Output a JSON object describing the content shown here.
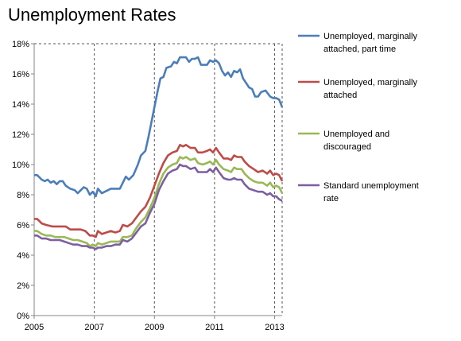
{
  "chart_data": {
    "type": "line",
    "title": "Unemployment Rates",
    "xlabel": "",
    "ylabel": "",
    "xlim": [
      2005,
      2013.25
    ],
    "ylim": [
      0,
      18
    ],
    "x_ticks": [
      2005,
      2007,
      2009,
      2011,
      2013
    ],
    "y_ticks": [
      0,
      2,
      4,
      6,
      8,
      10,
      12,
      14,
      16,
      18
    ],
    "y_tick_labels": [
      "0%",
      "2%",
      "4%",
      "6%",
      "8%",
      "10%",
      "12%",
      "14%",
      "16%",
      "18%"
    ],
    "grid": {
      "vertical": true,
      "horizontal": false,
      "style": "dashed"
    },
    "legend_position": "right",
    "series": [
      {
        "name": "Unemployed, marginally attached, part time",
        "color": "#4a7ebb",
        "legend_lines": [
          "Unemployed, marginally",
          "attached, part time"
        ],
        "points": [
          [
            2005.0,
            9.3
          ],
          [
            2005.1,
            9.3
          ],
          [
            2005.25,
            9.0
          ],
          [
            2005.35,
            8.9
          ],
          [
            2005.45,
            9.0
          ],
          [
            2005.55,
            8.8
          ],
          [
            2005.65,
            8.9
          ],
          [
            2005.75,
            8.7
          ],
          [
            2005.85,
            8.9
          ],
          [
            2005.95,
            8.9
          ],
          [
            2006.05,
            8.6
          ],
          [
            2006.2,
            8.4
          ],
          [
            2006.35,
            8.3
          ],
          [
            2006.45,
            8.1
          ],
          [
            2006.55,
            8.3
          ],
          [
            2006.65,
            8.5
          ],
          [
            2006.75,
            8.4
          ],
          [
            2006.85,
            8.0
          ],
          [
            2006.95,
            8.2
          ],
          [
            2007.05,
            7.9
          ],
          [
            2007.12,
            8.4
          ],
          [
            2007.25,
            8.1
          ],
          [
            2007.35,
            8.2
          ],
          [
            2007.45,
            8.3
          ],
          [
            2007.55,
            8.4
          ],
          [
            2007.7,
            8.4
          ],
          [
            2007.85,
            8.4
          ],
          [
            2007.95,
            8.8
          ],
          [
            2008.05,
            9.2
          ],
          [
            2008.15,
            9.0
          ],
          [
            2008.3,
            9.3
          ],
          [
            2008.45,
            10.0
          ],
          [
            2008.55,
            10.6
          ],
          [
            2008.7,
            10.9
          ],
          [
            2008.8,
            11.8
          ],
          [
            2008.9,
            12.8
          ],
          [
            2009.0,
            13.8
          ],
          [
            2009.1,
            14.8
          ],
          [
            2009.2,
            15.7
          ],
          [
            2009.3,
            15.8
          ],
          [
            2009.4,
            16.4
          ],
          [
            2009.55,
            16.5
          ],
          [
            2009.65,
            16.8
          ],
          [
            2009.75,
            16.7
          ],
          [
            2009.85,
            17.1
          ],
          [
            2009.95,
            17.1
          ],
          [
            2010.05,
            17.1
          ],
          [
            2010.15,
            16.8
          ],
          [
            2010.25,
            17.0
          ],
          [
            2010.35,
            17.0
          ],
          [
            2010.45,
            17.1
          ],
          [
            2010.55,
            16.6
          ],
          [
            2010.65,
            16.6
          ],
          [
            2010.75,
            16.6
          ],
          [
            2010.85,
            16.9
          ],
          [
            2010.95,
            16.8
          ],
          [
            2011.05,
            16.9
          ],
          [
            2011.15,
            16.7
          ],
          [
            2011.25,
            16.2
          ],
          [
            2011.35,
            15.9
          ],
          [
            2011.45,
            16.1
          ],
          [
            2011.55,
            15.8
          ],
          [
            2011.65,
            16.2
          ],
          [
            2011.75,
            16.1
          ],
          [
            2011.85,
            16.3
          ],
          [
            2011.95,
            15.7
          ],
          [
            2012.05,
            15.4
          ],
          [
            2012.15,
            15.1
          ],
          [
            2012.25,
            15.0
          ],
          [
            2012.35,
            14.5
          ],
          [
            2012.45,
            14.5
          ],
          [
            2012.55,
            14.8
          ],
          [
            2012.7,
            14.9
          ],
          [
            2012.85,
            14.5
          ],
          [
            2012.95,
            14.4
          ],
          [
            2013.05,
            14.4
          ],
          [
            2013.15,
            14.3
          ],
          [
            2013.25,
            13.8
          ]
        ]
      },
      {
        "name": "Unemployed, marginally attached",
        "color": "#be4b48",
        "legend_lines": [
          "Unemployed, marginally",
          "attached"
        ],
        "points": [
          [
            2005.0,
            6.4
          ],
          [
            2005.1,
            6.4
          ],
          [
            2005.25,
            6.1
          ],
          [
            2005.4,
            6.0
          ],
          [
            2005.6,
            5.9
          ],
          [
            2005.8,
            5.9
          ],
          [
            2005.95,
            5.9
          ],
          [
            2006.05,
            5.9
          ],
          [
            2006.2,
            5.7
          ],
          [
            2006.4,
            5.7
          ],
          [
            2006.55,
            5.7
          ],
          [
            2006.7,
            5.6
          ],
          [
            2006.85,
            5.3
          ],
          [
            2006.95,
            5.3
          ],
          [
            2007.05,
            5.2
          ],
          [
            2007.12,
            5.6
          ],
          [
            2007.25,
            5.4
          ],
          [
            2007.4,
            5.5
          ],
          [
            2007.55,
            5.6
          ],
          [
            2007.7,
            5.5
          ],
          [
            2007.85,
            5.6
          ],
          [
            2007.95,
            6.0
          ],
          [
            2008.1,
            5.9
          ],
          [
            2008.25,
            6.1
          ],
          [
            2008.4,
            6.5
          ],
          [
            2008.55,
            6.9
          ],
          [
            2008.7,
            7.2
          ],
          [
            2008.85,
            7.8
          ],
          [
            2009.0,
            8.6
          ],
          [
            2009.15,
            9.4
          ],
          [
            2009.3,
            10.1
          ],
          [
            2009.45,
            10.6
          ],
          [
            2009.6,
            10.8
          ],
          [
            2009.75,
            10.9
          ],
          [
            2009.85,
            11.3
          ],
          [
            2009.95,
            11.2
          ],
          [
            2010.05,
            11.3
          ],
          [
            2010.2,
            11.1
          ],
          [
            2010.35,
            11.1
          ],
          [
            2010.45,
            10.8
          ],
          [
            2010.6,
            10.8
          ],
          [
            2010.75,
            10.9
          ],
          [
            2010.85,
            11.0
          ],
          [
            2010.95,
            10.8
          ],
          [
            2011.05,
            11.1
          ],
          [
            2011.15,
            10.8
          ],
          [
            2011.3,
            10.4
          ],
          [
            2011.45,
            10.4
          ],
          [
            2011.55,
            10.3
          ],
          [
            2011.65,
            10.6
          ],
          [
            2011.75,
            10.5
          ],
          [
            2011.9,
            10.5
          ],
          [
            2012.0,
            10.2
          ],
          [
            2012.15,
            9.9
          ],
          [
            2012.3,
            9.7
          ],
          [
            2012.45,
            9.5
          ],
          [
            2012.6,
            9.6
          ],
          [
            2012.75,
            9.4
          ],
          [
            2012.85,
            9.6
          ],
          [
            2012.95,
            9.3
          ],
          [
            2013.05,
            9.4
          ],
          [
            2013.15,
            9.3
          ],
          [
            2013.25,
            8.9
          ]
        ]
      },
      {
        "name": "Unemployed and discouraged",
        "color": "#98b954",
        "legend_lines": [
          "Unemployed and",
          "discouraged"
        ],
        "points": [
          [
            2005.0,
            5.6
          ],
          [
            2005.1,
            5.6
          ],
          [
            2005.25,
            5.4
          ],
          [
            2005.4,
            5.3
          ],
          [
            2005.55,
            5.3
          ],
          [
            2005.7,
            5.2
          ],
          [
            2005.85,
            5.2
          ],
          [
            2006.0,
            5.2
          ],
          [
            2006.15,
            5.1
          ],
          [
            2006.3,
            5.0
          ],
          [
            2006.45,
            5.0
          ],
          [
            2006.6,
            4.9
          ],
          [
            2006.75,
            4.8
          ],
          [
            2006.85,
            4.6
          ],
          [
            2006.95,
            4.7
          ],
          [
            2007.05,
            4.6
          ],
          [
            2007.12,
            4.8
          ],
          [
            2007.25,
            4.7
          ],
          [
            2007.4,
            4.8
          ],
          [
            2007.55,
            4.9
          ],
          [
            2007.7,
            4.9
          ],
          [
            2007.85,
            4.9
          ],
          [
            2007.95,
            5.2
          ],
          [
            2008.1,
            5.2
          ],
          [
            2008.25,
            5.3
          ],
          [
            2008.4,
            5.8
          ],
          [
            2008.55,
            6.2
          ],
          [
            2008.7,
            6.5
          ],
          [
            2008.85,
            7.1
          ],
          [
            2009.0,
            7.8
          ],
          [
            2009.15,
            8.7
          ],
          [
            2009.3,
            9.4
          ],
          [
            2009.45,
            9.8
          ],
          [
            2009.6,
            10.0
          ],
          [
            2009.75,
            10.1
          ],
          [
            2009.85,
            10.5
          ],
          [
            2009.95,
            10.4
          ],
          [
            2010.05,
            10.5
          ],
          [
            2010.2,
            10.3
          ],
          [
            2010.35,
            10.4
          ],
          [
            2010.45,
            10.1
          ],
          [
            2010.6,
            10.0
          ],
          [
            2010.75,
            10.1
          ],
          [
            2010.85,
            10.2
          ],
          [
            2010.95,
            10.0
          ],
          [
            2011.05,
            10.3
          ],
          [
            2011.15,
            10.0
          ],
          [
            2011.3,
            9.7
          ],
          [
            2011.45,
            9.6
          ],
          [
            2011.55,
            9.5
          ],
          [
            2011.65,
            9.8
          ],
          [
            2011.75,
            9.7
          ],
          [
            2011.9,
            9.7
          ],
          [
            2012.0,
            9.4
          ],
          [
            2012.15,
            9.1
          ],
          [
            2012.3,
            8.9
          ],
          [
            2012.45,
            8.8
          ],
          [
            2012.6,
            8.8
          ],
          [
            2012.75,
            8.6
          ],
          [
            2012.85,
            8.8
          ],
          [
            2012.95,
            8.5
          ],
          [
            2013.05,
            8.6
          ],
          [
            2013.15,
            8.5
          ],
          [
            2013.25,
            8.1
          ]
        ]
      },
      {
        "name": "Standard unemployment rate",
        "color": "#7d5fa0",
        "legend_lines": [
          "Standard unemployment",
          "rate"
        ],
        "points": [
          [
            2005.0,
            5.3
          ],
          [
            2005.1,
            5.3
          ],
          [
            2005.25,
            5.1
          ],
          [
            2005.4,
            5.1
          ],
          [
            2005.55,
            5.0
          ],
          [
            2005.7,
            5.0
          ],
          [
            2005.85,
            5.0
          ],
          [
            2006.0,
            4.9
          ],
          [
            2006.15,
            4.8
          ],
          [
            2006.3,
            4.7
          ],
          [
            2006.45,
            4.7
          ],
          [
            2006.6,
            4.6
          ],
          [
            2006.75,
            4.6
          ],
          [
            2006.85,
            4.5
          ],
          [
            2006.95,
            4.5
          ],
          [
            2007.05,
            4.4
          ],
          [
            2007.12,
            4.5
          ],
          [
            2007.25,
            4.5
          ],
          [
            2007.4,
            4.6
          ],
          [
            2007.55,
            4.6
          ],
          [
            2007.7,
            4.7
          ],
          [
            2007.85,
            4.7
          ],
          [
            2007.95,
            5.0
          ],
          [
            2008.1,
            4.9
          ],
          [
            2008.25,
            5.1
          ],
          [
            2008.4,
            5.5
          ],
          [
            2008.55,
            5.9
          ],
          [
            2008.7,
            6.1
          ],
          [
            2008.85,
            6.8
          ],
          [
            2009.0,
            7.4
          ],
          [
            2009.15,
            8.3
          ],
          [
            2009.3,
            8.9
          ],
          [
            2009.45,
            9.4
          ],
          [
            2009.6,
            9.6
          ],
          [
            2009.75,
            9.7
          ],
          [
            2009.85,
            10.0
          ],
          [
            2009.95,
            9.9
          ],
          [
            2010.05,
            9.9
          ],
          [
            2010.2,
            9.7
          ],
          [
            2010.35,
            9.8
          ],
          [
            2010.45,
            9.5
          ],
          [
            2010.6,
            9.5
          ],
          [
            2010.75,
            9.5
          ],
          [
            2010.85,
            9.7
          ],
          [
            2010.95,
            9.5
          ],
          [
            2011.05,
            9.8
          ],
          [
            2011.15,
            9.5
          ],
          [
            2011.3,
            9.1
          ],
          [
            2011.45,
            9.0
          ],
          [
            2011.55,
            9.0
          ],
          [
            2011.65,
            9.1
          ],
          [
            2011.75,
            9.0
          ],
          [
            2011.9,
            9.0
          ],
          [
            2012.0,
            8.7
          ],
          [
            2012.15,
            8.4
          ],
          [
            2012.3,
            8.3
          ],
          [
            2012.45,
            8.2
          ],
          [
            2012.6,
            8.2
          ],
          [
            2012.75,
            8.0
          ],
          [
            2012.85,
            8.1
          ],
          [
            2012.95,
            7.9
          ],
          [
            2013.05,
            7.9
          ],
          [
            2013.15,
            7.7
          ],
          [
            2013.25,
            7.6
          ]
        ]
      }
    ]
  }
}
